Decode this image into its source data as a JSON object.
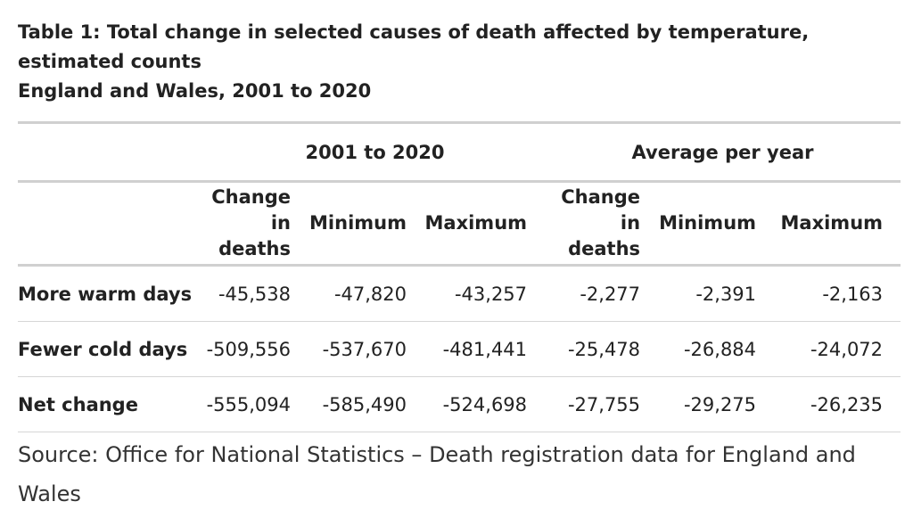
{
  "title": {
    "line1": "Table 1: Total change in selected causes of death affected by temperature, estimated counts",
    "line2": "England and Wales, 2001 to 2020"
  },
  "table": {
    "groups": [
      "2001 to 2020",
      "Average per year"
    ],
    "columns": [
      {
        "line1": "Change",
        "line2": "in deaths"
      },
      {
        "line1": "",
        "line2": "Minimum"
      },
      {
        "line1": "",
        "line2": "Maximum"
      },
      {
        "line1": "Change",
        "line2": "in deaths"
      },
      {
        "line1": "",
        "line2": "Minimum"
      },
      {
        "line1": "",
        "line2": "Maximum"
      }
    ],
    "rows": [
      {
        "label": "More warm days",
        "values": [
          "-45,538",
          "-47,820",
          "-43,257",
          "-2,277",
          "-2,391",
          "-2,163"
        ]
      },
      {
        "label": "Fewer cold days",
        "values": [
          "-509,556",
          "-537,670",
          "-481,441",
          "-25,478",
          "-26,884",
          "-24,072"
        ]
      },
      {
        "label": "Net change",
        "values": [
          "-555,094",
          "-585,490",
          "-524,698",
          "-27,755",
          "-29,275",
          "-26,235"
        ]
      }
    ]
  },
  "source": "Source: Office for National Statistics – Death registration data for England and Wales"
}
